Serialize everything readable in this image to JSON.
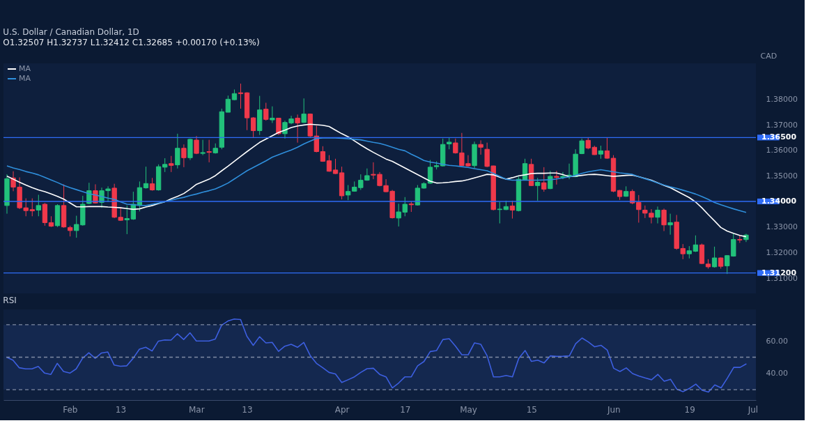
{
  "chart_data": [
    {
      "type": "candlestick",
      "title": "U.S. Dollar / Canadian Dollar, 1D",
      "subtitle": "O1.32507 H1.32737 L1.32412 C1.32685 +0.00170 (+0.13%)",
      "ylabel": "CAD",
      "legend": "top left",
      "tick_labels": "y",
      "categories": [
        null,
        null,
        null,
        null,
        null,
        null,
        null,
        null,
        null,
        null,
        null,
        null,
        null,
        null,
        null,
        null,
        null,
        null,
        null,
        null,
        null,
        null,
        null,
        null,
        null,
        null,
        null,
        null,
        null,
        null,
        null,
        null,
        null,
        null,
        null,
        null,
        null,
        null,
        null,
        null,
        null,
        null,
        null,
        null,
        null,
        null,
        null,
        null,
        null,
        null,
        null,
        null,
        null,
        null,
        null,
        null,
        null,
        null,
        null,
        null,
        null,
        null,
        null,
        null,
        null,
        null,
        null,
        null,
        null,
        null,
        null,
        null,
        null,
        null,
        null,
        null,
        null,
        null,
        null,
        null,
        null,
        null,
        null,
        null,
        null,
        null,
        null,
        null,
        null,
        null,
        null,
        null,
        null,
        null,
        null,
        null,
        null,
        null,
        null,
        null,
        null,
        null,
        null,
        null,
        null,
        null,
        null,
        null,
        null,
        null,
        null,
        null,
        null,
        null,
        null,
        null,
        null,
        null,
        null
      ],
      "ohlc": [
        [
          1.3384,
          1.3506,
          1.3352,
          1.3489
        ],
        [
          1.3492,
          1.3518,
          1.344,
          1.3456
        ],
        [
          1.3456,
          1.3494,
          1.337,
          1.3375
        ],
        [
          1.3375,
          1.3412,
          1.3342,
          1.3364
        ],
        [
          1.3368,
          1.3412,
          1.3342,
          1.3363
        ],
        [
          1.3366,
          1.3426,
          1.3342,
          1.3384
        ],
        [
          1.3389,
          1.3394,
          1.3305,
          1.3317
        ],
        [
          1.3317,
          1.3342,
          1.33,
          1.3303
        ],
        [
          1.3305,
          1.3389,
          1.33,
          1.3384
        ],
        [
          1.3384,
          1.3467,
          1.3297,
          1.33
        ],
        [
          1.3298,
          1.3305,
          1.3263,
          1.3286
        ],
        [
          1.3286,
          1.3344,
          1.3258,
          1.331
        ],
        [
          1.3308,
          1.3422,
          1.3305,
          1.3389
        ],
        [
          1.3392,
          1.3473,
          1.3389,
          1.3442
        ],
        [
          1.3442,
          1.3467,
          1.3392,
          1.3394
        ],
        [
          1.3396,
          1.3454,
          1.3375,
          1.3442
        ],
        [
          1.3442,
          1.3459,
          1.3398,
          1.3449
        ],
        [
          1.3452,
          1.3469,
          1.3335,
          1.3338
        ],
        [
          1.3338,
          1.3378,
          1.3324,
          1.3326
        ],
        [
          1.3328,
          1.3384,
          1.3272,
          1.3333
        ],
        [
          1.3331,
          1.3438,
          1.3328,
          1.3389
        ],
        [
          1.3384,
          1.3478,
          1.3361,
          1.3454
        ],
        [
          1.3453,
          1.3536,
          1.345,
          1.347
        ],
        [
          1.3469,
          1.3492,
          1.3442,
          1.3445
        ],
        [
          1.3445,
          1.3545,
          1.3442,
          1.3536
        ],
        [
          1.3534,
          1.3569,
          1.3515,
          1.3545
        ],
        [
          1.3548,
          1.3578,
          1.3515,
          1.3541
        ],
        [
          1.3543,
          1.3665,
          1.3529,
          1.3608
        ],
        [
          1.3608,
          1.3623,
          1.3534,
          1.3571
        ],
        [
          1.3571,
          1.3646,
          1.3562,
          1.3643
        ],
        [
          1.364,
          1.3656,
          1.3585,
          1.3588
        ],
        [
          1.3588,
          1.3641,
          1.3581,
          1.3591
        ],
        [
          1.3595,
          1.3641,
          1.3553,
          1.3592
        ],
        [
          1.359,
          1.3627,
          1.3587,
          1.3608
        ],
        [
          1.3612,
          1.3763,
          1.3604,
          1.3751
        ],
        [
          1.3749,
          1.3814,
          1.3749,
          1.38
        ],
        [
          1.3798,
          1.3838,
          1.3796,
          1.3822
        ],
        [
          1.3825,
          1.3861,
          1.3763,
          1.3822
        ],
        [
          1.3825,
          1.3827,
          1.3679,
          1.3727
        ],
        [
          1.3727,
          1.373,
          1.3651,
          1.3677
        ],
        [
          1.3677,
          1.3813,
          1.366,
          1.3758
        ],
        [
          1.3761,
          1.3786,
          1.3716,
          1.3721
        ],
        [
          1.3719,
          1.3772,
          1.3707,
          1.3726
        ],
        [
          1.3726,
          1.3727,
          1.366,
          1.3665
        ],
        [
          1.3665,
          1.3716,
          1.3646,
          1.3709
        ],
        [
          1.3707,
          1.3735,
          1.3702,
          1.3723
        ],
        [
          1.3726,
          1.374,
          1.363,
          1.3707
        ],
        [
          1.3709,
          1.3803,
          1.3707,
          1.3742
        ],
        [
          1.3742,
          1.3744,
          1.3651,
          1.3656
        ],
        [
          1.3656,
          1.3696,
          1.3592,
          1.3595
        ],
        [
          1.3595,
          1.3616,
          1.3555,
          1.3557
        ],
        [
          1.3559,
          1.3581,
          1.3516,
          1.3518
        ],
        [
          1.3523,
          1.3567,
          1.3507,
          1.3509
        ],
        [
          1.3512,
          1.3536,
          1.3408,
          1.3422
        ],
        [
          1.3425,
          1.3464,
          1.3405,
          1.3439
        ],
        [
          1.344,
          1.3478,
          1.3438,
          1.3456
        ],
        [
          1.3454,
          1.3506,
          1.3445,
          1.3483
        ],
        [
          1.3483,
          1.3529,
          1.3481,
          1.3501
        ],
        [
          1.3506,
          1.3553,
          1.3487,
          1.3503
        ],
        [
          1.3506,
          1.3515,
          1.3459,
          1.3462
        ],
        [
          1.3462,
          1.3487,
          1.3436,
          1.3438
        ],
        [
          1.344,
          1.3445,
          1.3333,
          1.3336
        ],
        [
          1.3335,
          1.3391,
          1.3302,
          1.3359
        ],
        [
          1.3358,
          1.3417,
          1.3342,
          1.3389
        ],
        [
          1.339,
          1.34,
          1.3359,
          1.3387
        ],
        [
          1.3386,
          1.3464,
          1.3384,
          1.3452
        ],
        [
          1.3452,
          1.3475,
          1.345,
          1.347
        ],
        [
          1.3471,
          1.3562,
          1.3469,
          1.3534
        ],
        [
          1.3536,
          1.3557,
          1.3525,
          1.354
        ],
        [
          1.3539,
          1.3646,
          1.3537,
          1.3623
        ],
        [
          1.3625,
          1.3649,
          1.3604,
          1.3632
        ],
        [
          1.3629,
          1.3646,
          1.3587,
          1.359
        ],
        [
          1.359,
          1.3668,
          1.3539,
          1.354
        ],
        [
          1.3548,
          1.3581,
          1.3536,
          1.3539
        ],
        [
          1.354,
          1.3634,
          1.3529,
          1.3623
        ],
        [
          1.3623,
          1.3639,
          1.3583,
          1.3612
        ],
        [
          1.3604,
          1.363,
          1.3534,
          1.3537
        ],
        [
          1.3539,
          1.354,
          1.3365,
          1.3368
        ],
        [
          1.3368,
          1.3398,
          1.3314,
          1.337
        ],
        [
          1.3368,
          1.3403,
          1.3366,
          1.338
        ],
        [
          1.3382,
          1.3403,
          1.3333,
          1.3366
        ],
        [
          1.3364,
          1.3497,
          1.3361,
          1.3487
        ],
        [
          1.3485,
          1.3567,
          1.3483,
          1.3548
        ],
        [
          1.3545,
          1.3567,
          1.346,
          1.3462
        ],
        [
          1.3462,
          1.3492,
          1.3403,
          1.3475
        ],
        [
          1.3473,
          1.3534,
          1.3438,
          1.3448
        ],
        [
          1.345,
          1.352,
          1.3448,
          1.3498
        ],
        [
          1.3498,
          1.352,
          1.3466,
          1.3494
        ],
        [
          1.3494,
          1.3515,
          1.3487,
          1.3498
        ],
        [
          1.3497,
          1.3548,
          1.3487,
          1.3503
        ],
        [
          1.3497,
          1.3604,
          1.3495,
          1.3585
        ],
        [
          1.3587,
          1.3646,
          1.3585,
          1.3637
        ],
        [
          1.3639,
          1.3651,
          1.3604,
          1.3609
        ],
        [
          1.3612,
          1.3618,
          1.3582,
          1.3583
        ],
        [
          1.3585,
          1.3618,
          1.3567,
          1.3598
        ],
        [
          1.3598,
          1.3649,
          1.3567,
          1.3569
        ],
        [
          1.3569,
          1.3581,
          1.3436,
          1.344
        ],
        [
          1.3443,
          1.3445,
          1.3406,
          1.3419
        ],
        [
          1.342,
          1.3459,
          1.3418,
          1.3439
        ],
        [
          1.3439,
          1.3447,
          1.3389,
          1.3394
        ],
        [
          1.3396,
          1.3425,
          1.3317,
          1.3368
        ],
        [
          1.3366,
          1.3384,
          1.3335,
          1.3354
        ],
        [
          1.3354,
          1.337,
          1.3314,
          1.3338
        ],
        [
          1.3338,
          1.338,
          1.3314,
          1.3366
        ],
        [
          1.3366,
          1.3372,
          1.3284,
          1.3308
        ],
        [
          1.3308,
          1.3352,
          1.327,
          1.3317
        ],
        [
          1.3319,
          1.3347,
          1.3211,
          1.3216
        ],
        [
          1.3216,
          1.3233,
          1.3174,
          1.3195
        ],
        [
          1.3195,
          1.3225,
          1.3177,
          1.3207
        ],
        [
          1.3205,
          1.3267,
          1.3202,
          1.323
        ],
        [
          1.323,
          1.3235,
          1.3155,
          1.3157
        ],
        [
          1.3155,
          1.3174,
          1.3137,
          1.3144
        ],
        [
          1.3144,
          1.3223,
          1.3141,
          1.3179
        ],
        [
          1.3179,
          1.3181,
          1.3137,
          1.3146
        ],
        [
          1.3148,
          1.319,
          1.3116,
          1.3188
        ],
        [
          1.3186,
          1.3275,
          1.3184,
          1.3251
        ],
        [
          1.3251,
          1.3269,
          1.3238,
          1.3249
        ],
        [
          1.32507,
          1.32737,
          1.32412,
          1.32685
        ],
        null
      ],
      "colors": [
        "#22c17b",
        "#f0394b",
        "#f0394b",
        "#f0394b",
        "#f0394b",
        "#22c17b",
        "#f0394b",
        "#f0394b",
        "#22c17b",
        "#f0394b",
        "#f0394b",
        "#22c17b",
        "#22c17b",
        "#22c17b",
        "#f0394b",
        "#22c17b",
        "#22c17b",
        "#f0394b",
        "#f0394b",
        "#22c17b",
        "#22c17b",
        "#22c17b",
        "#22c17b",
        "#f0394b",
        "#22c17b",
        "#22c17b",
        "#f0394b",
        "#22c17b",
        "#f0394b",
        "#22c17b",
        "#f0394b",
        "#22c17b",
        "#f0394b",
        "#22c17b",
        "#22c17b",
        "#22c17b",
        "#22c17b",
        "#f0394b",
        "#f0394b",
        "#f0394b",
        "#22c17b",
        "#f0394b",
        "#22c17b",
        "#f0394b",
        "#22c17b",
        "#22c17b",
        "#f0394b",
        "#22c17b",
        "#f0394b",
        "#f0394b",
        "#f0394b",
        "#f0394b",
        "#f0394b",
        "#f0394b",
        "#22c17b",
        "#22c17b",
        "#22c17b",
        "#22c17b",
        "#f0394b",
        "#f0394b",
        "#f0394b",
        "#f0394b",
        "#22c17b",
        "#22c17b",
        "#f0394b",
        "#22c17b",
        "#22c17b",
        "#22c17b",
        "#22c17b",
        "#22c17b",
        "#22c17b",
        "#f0394b",
        "#f0394b",
        "#f0394b",
        "#22c17b",
        "#f0394b",
        "#f0394b",
        "#f0394b",
        "#22c17b",
        "#22c17b",
        "#f0394b",
        "#22c17b",
        "#22c17b",
        "#f0394b",
        "#22c17b",
        "#f0394b",
        "#22c17b",
        "#f0394b",
        "#22c17b",
        "#22c17b",
        "#22c17b",
        "#22c17b",
        "#f0394b",
        "#f0394b",
        "#22c17b",
        "#f0394b",
        "#f0394b",
        "#f0394b",
        "#22c17b",
        "#f0394b",
        "#f0394b",
        "#f0394b",
        "#f0394b",
        "#22c17b",
        "#f0394b",
        "#22c17b",
        "#f0394b",
        "#f0394b",
        "#22c17b",
        "#22c17b",
        "#f0394b",
        "#f0394b",
        "#22c17b",
        "#f0394b",
        "#22c17b",
        "#22c17b",
        "#f0394b",
        "#22c17b",
        null
      ],
      "series": [
        {
          "name": "MA",
          "type": "line",
          "color": "#ffffff",
          "values": [
            1.3499,
            1.3487,
            1.3475,
            1.3464,
            1.3454,
            1.3445,
            1.3438,
            1.3429,
            1.342,
            1.3409,
            1.3394,
            1.3379,
            1.3379,
            1.338,
            1.338,
            1.338,
            1.3378,
            1.3377,
            1.3375,
            1.3372,
            1.3369,
            1.3371,
            1.3378,
            1.3384,
            1.3392,
            1.3399,
            1.341,
            1.342,
            1.3431,
            1.3448,
            1.3467,
            1.3477,
            1.3487,
            1.3501,
            1.352,
            1.3538,
            1.3557,
            1.3576,
            1.3595,
            1.3613,
            1.3631,
            1.3644,
            1.3657,
            1.367,
            1.3679,
            1.3689,
            1.3695,
            1.3699,
            1.3702,
            1.37,
            1.3698,
            1.3693,
            1.3679,
            1.3665,
            1.3653,
            1.3637,
            1.3621,
            1.3606,
            1.3592,
            1.3579,
            1.3566,
            1.3557,
            1.3544,
            1.3531,
            1.3518,
            1.3505,
            1.3492,
            1.3479,
            1.3472,
            1.3473,
            1.3475,
            1.3478,
            1.348,
            1.3485,
            1.3492,
            1.3499,
            1.3506,
            1.3504,
            1.3495,
            1.3487,
            1.3493,
            1.35,
            1.3504,
            1.3509,
            1.351,
            1.351,
            1.3511,
            1.3511,
            1.3505,
            1.3497,
            1.3499,
            1.3502,
            1.3505,
            1.3506,
            1.3504,
            1.3501,
            1.3498,
            1.35,
            1.3502,
            1.3503,
            1.3497,
            1.349,
            1.3483,
            1.3473,
            1.3463,
            1.3454,
            1.3441,
            1.3428,
            1.3415,
            1.3398,
            1.3375,
            1.3349,
            1.3324,
            1.3298,
            1.3284,
            1.3275,
            1.3267,
            1.3262,
            null
          ]
        },
        {
          "name": "MA",
          "type": "line",
          "color": "#2f8fdc",
          "values": [
            1.3539,
            1.3531,
            1.3525,
            1.3517,
            1.3511,
            1.3504,
            1.3494,
            1.3484,
            1.3474,
            1.3463,
            1.3454,
            1.3446,
            1.3438,
            1.343,
            1.3425,
            1.3419,
            1.3413,
            1.3408,
            1.3398,
            1.3389,
            1.3387,
            1.3385,
            1.3384,
            1.3389,
            1.3394,
            1.3399,
            1.3405,
            1.3411,
            1.3416,
            1.3423,
            1.3429,
            1.3436,
            1.3442,
            1.3449,
            1.346,
            1.3472,
            1.3488,
            1.3504,
            1.352,
            1.3533,
            1.3546,
            1.3559,
            1.3573,
            1.3583,
            1.3592,
            1.3601,
            1.3612,
            1.3625,
            1.3636,
            1.3646,
            1.3648,
            1.3649,
            1.3648,
            1.3647,
            1.3645,
            1.3643,
            1.3641,
            1.3636,
            1.3631,
            1.3627,
            1.362,
            1.3612,
            1.3604,
            1.3598,
            1.3585,
            1.3573,
            1.356,
            1.3554,
            1.355,
            1.3545,
            1.3541,
            1.3539,
            1.3536,
            1.3533,
            1.3528,
            1.3524,
            1.352,
            1.351,
            1.3498,
            1.3487,
            1.3483,
            1.3483,
            1.3483,
            1.3483,
            1.3483,
            1.3484,
            1.3485,
            1.3488,
            1.3492,
            1.3496,
            1.3502,
            1.351,
            1.3516,
            1.352,
            1.3524,
            1.352,
            1.3516,
            1.3512,
            1.3509,
            1.3506,
            1.3497,
            1.3489,
            1.3481,
            1.3472,
            1.3464,
            1.3457,
            1.3451,
            1.3444,
            1.3437,
            1.3429,
            1.3419,
            1.3408,
            1.3396,
            1.3387,
            1.3379,
            1.3371,
            1.3364,
            1.3357,
            null
          ]
        }
      ],
      "ylim": [
        1.304,
        1.394
      ],
      "yticks": [
        {
          "value": 1.31,
          "label": "1.31000"
        },
        {
          "value": 1.32,
          "label": "1.32000"
        },
        {
          "value": 1.33,
          "label": "1.33000"
        },
        {
          "value": 1.35,
          "label": "1.35000"
        },
        {
          "value": 1.36,
          "label": "1.36000"
        },
        {
          "value": 1.37,
          "label": "1.37000"
        },
        {
          "value": 1.38,
          "label": "1.38000"
        }
      ],
      "ref_lines": [
        {
          "axis": "y",
          "value": 1.365,
          "label": "1.36500",
          "color": "#2f6cf6"
        },
        {
          "axis": "y",
          "value": 1.34,
          "label": "1.34000",
          "color": "#2f6cf6"
        },
        {
          "axis": "y",
          "value": 1.312,
          "label": "1.31200",
          "color": "#2f6cf6"
        }
      ]
    },
    {
      "type": "line",
      "title": "RSI",
      "categories": [
        null,
        null,
        null,
        null,
        null,
        null,
        null,
        null,
        null,
        null,
        "Feb",
        null,
        null,
        null,
        null,
        null,
        null,
        null,
        "13",
        null,
        null,
        null,
        null,
        null,
        null,
        null,
        null,
        null,
        null,
        null,
        "Mar",
        null,
        null,
        null,
        null,
        null,
        null,
        null,
        "13",
        null,
        null,
        null,
        null,
        null,
        null,
        null,
        null,
        null,
        null,
        null,
        null,
        null,
        null,
        "Apr",
        null,
        null,
        null,
        null,
        null,
        null,
        null,
        null,
        null,
        "17",
        null,
        null,
        null,
        null,
        null,
        null,
        null,
        null,
        null,
        "May",
        null,
        null,
        null,
        null,
        null,
        null,
        null,
        null,
        null,
        "15",
        null,
        null,
        null,
        null,
        null,
        null,
        null,
        null,
        null,
        null,
        null,
        null,
        "Jun",
        null,
        null,
        null,
        null,
        null,
        null,
        null,
        null,
        null,
        null,
        null,
        "19",
        null,
        null,
        null,
        null,
        null,
        null,
        null,
        null,
        null,
        "Jul"
      ],
      "series": [
        {
          "color": "#3d5fe0",
          "values": [
            50.0,
            48.2,
            43.5,
            42.8,
            42.8,
            44.3,
            40.2,
            39.4,
            46.2,
            41.2,
            40.2,
            42.8,
            49.3,
            52.7,
            49.3,
            52.6,
            53.2,
            45.2,
            44.4,
            44.7,
            49.3,
            54.9,
            56.1,
            53.8,
            59.9,
            60.6,
            60.5,
            64.4,
            60.9,
            65.0,
            60.0,
            60.0,
            60.0,
            61.2,
            69.7,
            72.3,
            73.5,
            73.2,
            62.9,
            57.3,
            62.6,
            58.8,
            59.1,
            53.6,
            56.8,
            57.9,
            56.1,
            59.1,
            51.1,
            46.2,
            43.5,
            40.6,
            39.7,
            34.4,
            36.1,
            37.9,
            40.6,
            42.9,
            43.2,
            39.4,
            37.9,
            31.1,
            34.1,
            37.9,
            37.9,
            44.7,
            47.3,
            53.5,
            54.1,
            60.9,
            61.4,
            56.8,
            51.5,
            51.5,
            58.8,
            57.9,
            50.8,
            37.9,
            37.9,
            38.7,
            37.9,
            49.3,
            54.1,
            47.4,
            48.2,
            46.5,
            50.8,
            50.5,
            50.6,
            50.8,
            58.3,
            61.8,
            59.4,
            56.4,
            57.3,
            54.3,
            43.2,
            41.2,
            43.4,
            39.9,
            38.4,
            37.2,
            36.1,
            39.4,
            35.2,
            36.4,
            30.3,
            28.8,
            30.8,
            33.4,
            29.6,
            28.5,
            32.9,
            31.1,
            37.2,
            43.7,
            43.7,
            45.9,
            null
          ]
        }
      ],
      "ylim": [
        23.6,
        79.4
      ],
      "yticks": [
        {
          "value": 40,
          "label": "40.00"
        },
        {
          "value": 60,
          "label": "60.00"
        }
      ],
      "ref_lines": [
        {
          "axis": "y",
          "value": 70,
          "color": "#7f8aa3",
          "line_style": "dashed"
        },
        {
          "axis": "y",
          "value": 50,
          "color": "#7f8aa3",
          "line_style": "dashed"
        },
        {
          "axis": "y",
          "value": 30,
          "color": "#7f8aa3",
          "line_style": "dashed"
        }
      ],
      "bands": [
        {
          "axis": "y",
          "from": 30,
          "to": 70,
          "color": "#14284f"
        }
      ]
    }
  ]
}
